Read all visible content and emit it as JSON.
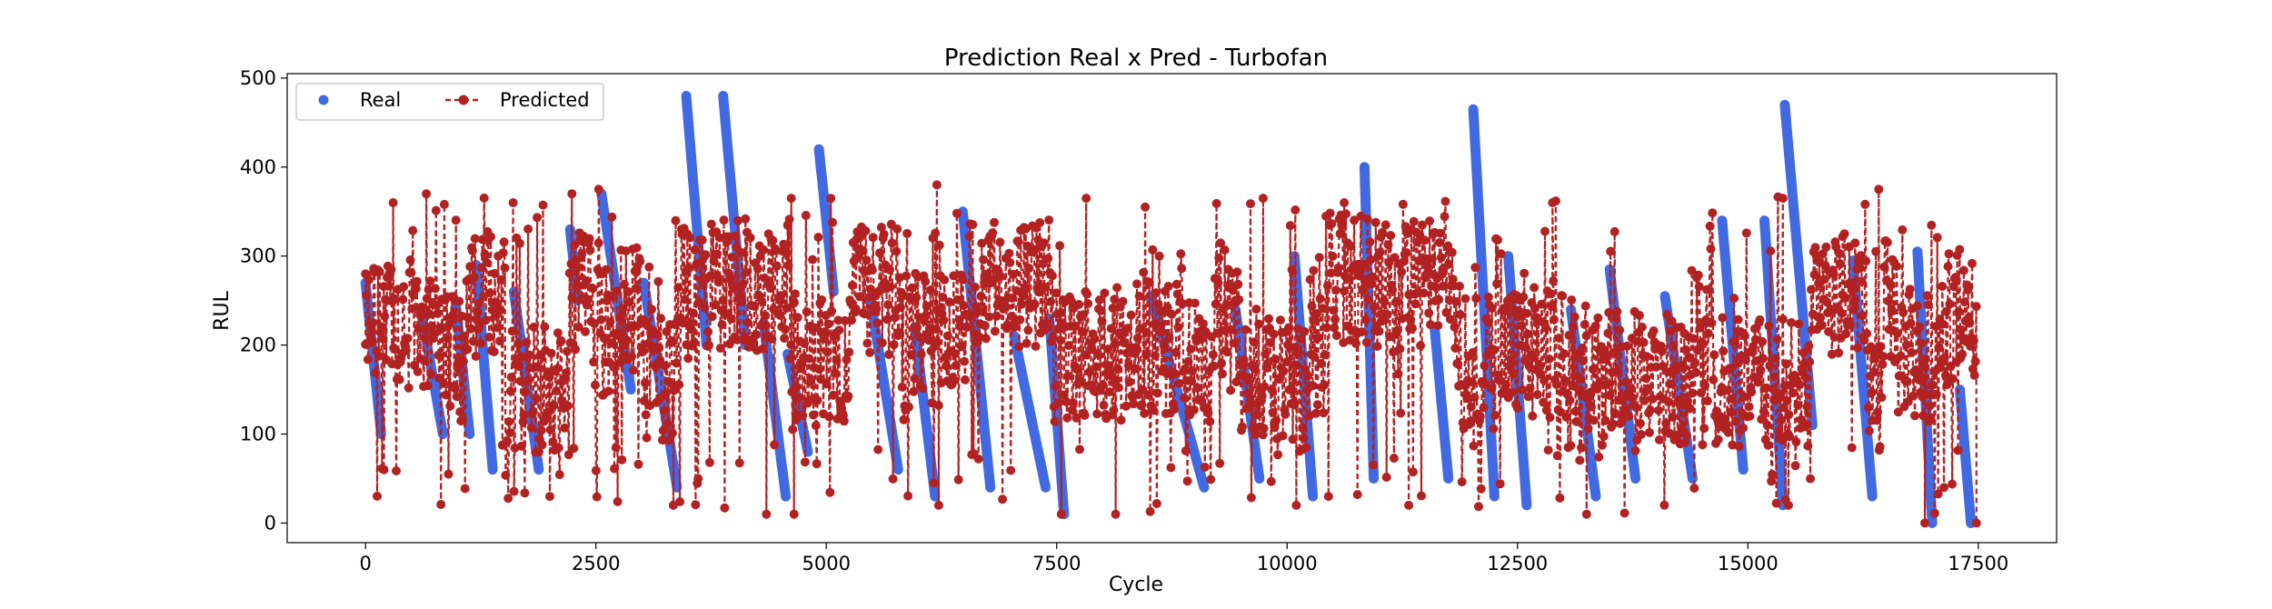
{
  "chart_data": {
    "type": "scatter",
    "title": "Prediction Real x Pred - Turbofan",
    "xlabel": "Cycle",
    "ylabel": "RUL",
    "xlim": [
      -850,
      18350
    ],
    "ylim": [
      -22,
      505
    ],
    "xticks": [
      0,
      2500,
      5000,
      7500,
      10000,
      12500,
      15000,
      17500
    ],
    "yticks": [
      0,
      100,
      200,
      300,
      400,
      500
    ],
    "grid": false,
    "legend_position": "top-left",
    "series": [
      {
        "name": "Real",
        "style": "markers",
        "color": "#4169E1",
        "segments": [
          {
            "x": [
              0,
              170
            ],
            "y": [
              270,
              100
            ]
          },
          {
            "x": [
              600,
              840
            ],
            "y": [
              240,
              100
            ]
          },
          {
            "x": [
              980,
              1130
            ],
            "y": [
              245,
              100
            ]
          },
          {
            "x": [
              1200,
              1380
            ],
            "y": [
              290,
              60
            ]
          },
          {
            "x": [
              1610,
              1880
            ],
            "y": [
              260,
              60
            ]
          },
          {
            "x": [
              2220,
              2300
            ],
            "y": [
              330,
              250
            ]
          },
          {
            "x": [
              2560,
              2880
            ],
            "y": [
              370,
              150
            ]
          },
          {
            "x": [
              3020,
              3380
            ],
            "y": [
              270,
              40
            ]
          },
          {
            "x": [
              3480,
              3700
            ],
            "y": [
              480,
              200
            ]
          },
          {
            "x": [
              3880,
              4120
            ],
            "y": [
              480,
              200
            ]
          },
          {
            "x": [
              4320,
              4560
            ],
            "y": [
              225,
              30
            ]
          },
          {
            "x": [
              4580,
              4800
            ],
            "y": [
              190,
              80
            ]
          },
          {
            "x": [
              4920,
              5080
            ],
            "y": [
              420,
              260
            ]
          },
          {
            "x": [
              5480,
              5780
            ],
            "y": [
              250,
              60
            ]
          },
          {
            "x": [
              5960,
              6180
            ],
            "y": [
              220,
              30
            ]
          },
          {
            "x": [
              6480,
              6780
            ],
            "y": [
              350,
              40
            ]
          },
          {
            "x": [
              7040,
              7380
            ],
            "y": [
              210,
              40
            ]
          },
          {
            "x": [
              7420,
              7580
            ],
            "y": [
              230,
              10
            ]
          },
          {
            "x": [
              8520,
              9100
            ],
            "y": [
              255,
              40
            ]
          },
          {
            "x": [
              9440,
              9700
            ],
            "y": [
              240,
              50
            ]
          },
          {
            "x": [
              10080,
              10280
            ],
            "y": [
              300,
              30
            ]
          },
          {
            "x": [
              10840,
              10940
            ],
            "y": [
              400,
              50
            ]
          },
          {
            "x": [
              11600,
              11750
            ],
            "y": [
              220,
              50
            ]
          },
          {
            "x": [
              12020,
              12250
            ],
            "y": [
              465,
              30
            ]
          },
          {
            "x": [
              12400,
              12600
            ],
            "y": [
              300,
              20
            ]
          },
          {
            "x": [
              13080,
              13350
            ],
            "y": [
              240,
              30
            ]
          },
          {
            "x": [
              13500,
              13780
            ],
            "y": [
              285,
              50
            ]
          },
          {
            "x": [
              14100,
              14400
            ],
            "y": [
              255,
              50
            ]
          },
          {
            "x": [
              14720,
              14950
            ],
            "y": [
              340,
              60
            ]
          },
          {
            "x": [
              15180,
              15380
            ],
            "y": [
              340,
              20
            ]
          },
          {
            "x": [
              15400,
              15700
            ],
            "y": [
              470,
              110
            ]
          },
          {
            "x": [
              16140,
              16350
            ],
            "y": [
              295,
              30
            ]
          },
          {
            "x": [
              16840,
              17000
            ],
            "y": [
              305,
              0
            ]
          },
          {
            "x": [
              17300,
              17420
            ],
            "y": [
              150,
              0
            ]
          }
        ]
      },
      {
        "name": "Predicted",
        "style": "dashed-line-markers",
        "color": "#B22222",
        "approx_range": [
          0,
          380
        ],
        "note_points": [
          [
            0,
            280
          ],
          [
            200,
            60
          ],
          [
            300,
            360
          ],
          [
            660,
            370
          ],
          [
            2000,
            30
          ],
          [
            2240,
            370
          ],
          [
            2530,
            375
          ],
          [
            3340,
            20
          ],
          [
            4350,
            10
          ],
          [
            4650,
            10
          ],
          [
            4620,
            365
          ],
          [
            6200,
            380
          ],
          [
            6220,
            20
          ],
          [
            7550,
            10
          ],
          [
            7820,
            365
          ],
          [
            8140,
            10
          ],
          [
            9740,
            365
          ],
          [
            10100,
            20
          ],
          [
            10620,
            360
          ],
          [
            11320,
            20
          ],
          [
            12880,
            360
          ],
          [
            13250,
            10
          ],
          [
            15380,
            365
          ],
          [
            15440,
            20
          ],
          [
            16420,
            375
          ],
          [
            16920,
            0
          ],
          [
            17480,
            0
          ]
        ]
      }
    ]
  },
  "legend": {
    "real_label": "Real",
    "predicted_label": "Predicted"
  }
}
